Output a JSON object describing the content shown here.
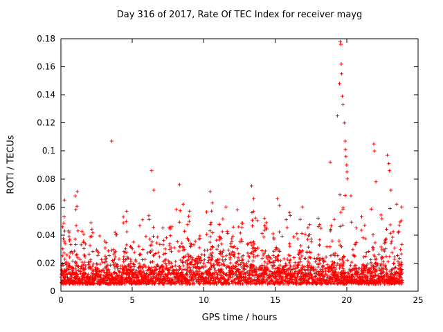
{
  "chart_data": {
    "type": "scatter",
    "title": "Day 316 of 2017, Rate Of TEC Index for receiver mayg",
    "xlabel": "GPS time / hours",
    "ylabel": "ROTI / TECUs",
    "xlim": [
      0,
      25
    ],
    "ylim": [
      0,
      0.18
    ],
    "xtick_values": [
      0,
      5,
      10,
      15,
      20,
      25
    ],
    "xtick_labels": [
      "0",
      "5",
      "10",
      "15",
      "20",
      "25"
    ],
    "ytick_values": [
      0,
      0.02,
      0.04,
      0.06,
      0.08,
      0.1,
      0.12,
      0.14,
      0.16,
      0.18
    ],
    "ytick_labels": [
      "0",
      "0.02",
      "0.04",
      "0.06",
      "0.08",
      "0.1",
      "0.12",
      "0.14",
      "0.16",
      "0.18"
    ],
    "grid": false,
    "legend": "none",
    "marker": "plus",
    "marker_color": "#ff0000",
    "axis_color": "#000000",
    "background_color": "#ffffff",
    "generator": {
      "seed": 3162017,
      "base": {
        "count": 2400,
        "x": [
          0.02,
          23.9
        ],
        "floor": 0.005,
        "scale": 0.0075,
        "cap": 0.053,
        "mod_amp": 0.3,
        "mod_freq": 0.3,
        "mod_phase": -1.8
      },
      "burst_floor": 0.012,
      "bursts": [
        [
          0.2,
          0.3,
          0.062,
          20
        ],
        [
          0.7,
          0.4,
          0.05,
          18
        ],
        [
          1.1,
          0.3,
          0.068,
          20
        ],
        [
          1.6,
          0.3,
          0.045,
          15
        ],
        [
          2.1,
          0.4,
          0.05,
          18
        ],
        [
          2.6,
          0.3,
          0.044,
          12
        ],
        [
          3.2,
          0.3,
          0.046,
          12
        ],
        [
          3.8,
          0.3,
          0.05,
          14
        ],
        [
          4.5,
          0.4,
          0.055,
          18
        ],
        [
          5.0,
          0.3,
          0.048,
          14
        ],
        [
          5.6,
          0.3,
          0.052,
          12
        ],
        [
          6.3,
          0.4,
          0.06,
          18
        ],
        [
          7.0,
          0.4,
          0.05,
          16
        ],
        [
          7.6,
          0.3,
          0.048,
          12
        ],
        [
          8.3,
          0.5,
          0.065,
          22
        ],
        [
          9.0,
          0.4,
          0.055,
          16
        ],
        [
          9.6,
          0.3,
          0.05,
          12
        ],
        [
          10.4,
          0.5,
          0.062,
          20
        ],
        [
          11.2,
          0.4,
          0.052,
          16
        ],
        [
          11.9,
          0.4,
          0.055,
          14
        ],
        [
          12.6,
          0.4,
          0.052,
          14
        ],
        [
          13.4,
          0.5,
          0.065,
          20
        ],
        [
          14.2,
          0.4,
          0.05,
          14
        ],
        [
          15.1,
          0.5,
          0.06,
          20
        ],
        [
          15.9,
          0.4,
          0.055,
          16
        ],
        [
          16.7,
          0.4,
          0.055,
          16
        ],
        [
          17.4,
          0.4,
          0.05,
          14
        ],
        [
          18.2,
          0.4,
          0.052,
          14
        ],
        [
          19.0,
          0.4,
          0.06,
          16
        ],
        [
          19.7,
          0.4,
          0.07,
          25
        ],
        [
          20.5,
          0.4,
          0.055,
          16
        ],
        [
          21.2,
          0.4,
          0.055,
          16
        ],
        [
          21.9,
          0.4,
          0.06,
          18
        ],
        [
          22.6,
          0.4,
          0.06,
          18
        ],
        [
          23.2,
          0.4,
          0.062,
          18
        ],
        [
          23.7,
          0.3,
          0.058,
          16
        ]
      ]
    },
    "outliers": [
      [
        0.25,
        0.065
      ],
      [
        1.15,
        0.071
      ],
      [
        3.55,
        0.107
      ],
      [
        4.6,
        0.057
      ],
      [
        6.35,
        0.086
      ],
      [
        6.5,
        0.072
      ],
      [
        8.3,
        0.076
      ],
      [
        8.55,
        0.062
      ],
      [
        9.0,
        0.057
      ],
      [
        10.45,
        0.071
      ],
      [
        10.6,
        0.063
      ],
      [
        11.55,
        0.06
      ],
      [
        12.35,
        0.058
      ],
      [
        13.35,
        0.075
      ],
      [
        13.5,
        0.066
      ],
      [
        14.25,
        0.052
      ],
      [
        15.15,
        0.066
      ],
      [
        15.3,
        0.061
      ],
      [
        16.0,
        0.056
      ],
      [
        16.9,
        0.06
      ],
      [
        18.0,
        0.052
      ],
      [
        18.85,
        0.092
      ],
      [
        19.35,
        0.125
      ],
      [
        19.5,
        0.148
      ],
      [
        19.55,
        0.178
      ],
      [
        19.6,
        0.176
      ],
      [
        19.62,
        0.162
      ],
      [
        19.65,
        0.155
      ],
      [
        19.7,
        0.139
      ],
      [
        19.75,
        0.133
      ],
      [
        19.85,
        0.12
      ],
      [
        19.9,
        0.107
      ],
      [
        19.92,
        0.101
      ],
      [
        19.95,
        0.096
      ],
      [
        20.0,
        0.09
      ],
      [
        20.02,
        0.085
      ],
      [
        20.05,
        0.08
      ],
      [
        20.3,
        0.068
      ],
      [
        21.05,
        0.053
      ],
      [
        21.9,
        0.105
      ],
      [
        21.95,
        0.1
      ],
      [
        22.05,
        0.078
      ],
      [
        22.85,
        0.097
      ],
      [
        22.95,
        0.091
      ],
      [
        23.0,
        0.086
      ],
      [
        23.1,
        0.072
      ],
      [
        23.5,
        0.062
      ],
      [
        23.85,
        0.06
      ]
    ]
  }
}
